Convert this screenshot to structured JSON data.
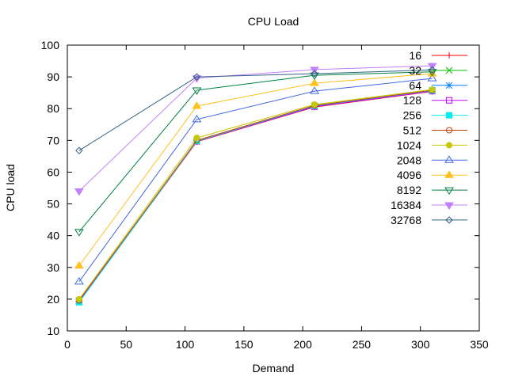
{
  "chart_data": {
    "type": "line",
    "title": "CPU Load",
    "xlabel": "Demand",
    "ylabel": "CPU load",
    "xlim": [
      0,
      350
    ],
    "ylim": [
      10,
      100
    ],
    "xticks": [
      0,
      50,
      100,
      150,
      200,
      250,
      300,
      350
    ],
    "yticks": [
      10,
      20,
      30,
      40,
      50,
      60,
      70,
      80,
      90,
      100
    ],
    "grid": false,
    "legend_position": "top-right",
    "x": [
      10,
      110,
      210,
      310
    ],
    "series": [
      {
        "name": "16",
        "color": "#ff0000",
        "marker": "plus",
        "values": [
          19.2,
          69.6,
          80.5,
          85.4
        ]
      },
      {
        "name": "32",
        "color": "#00c000",
        "marker": "cross",
        "values": [
          19.4,
          69.8,
          80.7,
          85.6
        ]
      },
      {
        "name": "64",
        "color": "#0080ff",
        "marker": "star",
        "values": [
          19.5,
          69.9,
          80.8,
          85.7
        ]
      },
      {
        "name": "128",
        "color": "#c000ff",
        "marker": "square-open",
        "values": [
          19.3,
          69.7,
          80.6,
          85.5
        ]
      },
      {
        "name": "256",
        "color": "#00eeee",
        "marker": "square-filled",
        "values": [
          19.0,
          69.8,
          80.9,
          85.7
        ]
      },
      {
        "name": "512",
        "color": "#c04000",
        "marker": "circle-open",
        "values": [
          19.6,
          70.0,
          81.0,
          85.8
        ]
      },
      {
        "name": "1024",
        "color": "#c8c800",
        "marker": "circle-filled",
        "values": [
          20.0,
          70.8,
          81.3,
          86.0
        ]
      },
      {
        "name": "2048",
        "color": "#4169e1",
        "marker": "triangle-open",
        "values": [
          25.5,
          76.6,
          85.5,
          89.5
        ]
      },
      {
        "name": "4096",
        "color": "#ffc020",
        "marker": "triangle-filled",
        "values": [
          30.5,
          80.8,
          88.0,
          91.0
        ]
      },
      {
        "name": "8192",
        "color": "#008040",
        "marker": "triangle-down-open",
        "values": [
          41.2,
          85.8,
          90.5,
          91.6
        ]
      },
      {
        "name": "16384",
        "color": "#c080ff",
        "marker": "triangle-down-filled",
        "values": [
          54.0,
          89.6,
          92.3,
          93.5
        ]
      },
      {
        "name": "32768",
        "color": "#306080",
        "marker": "diamond-open",
        "values": [
          66.8,
          90.0,
          91.0,
          92.2
        ]
      }
    ]
  }
}
